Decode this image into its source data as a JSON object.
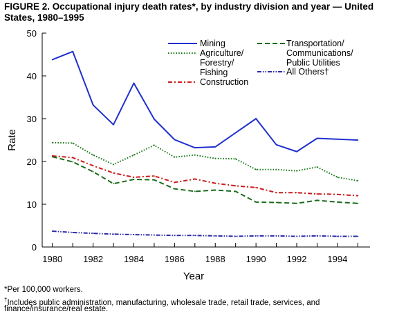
{
  "figure": {
    "title_line1": "FIGURE 2. Occupational injury death rates*, by industry division and year — United",
    "title_line2": "States, 1980–1995"
  },
  "chart_data": {
    "type": "line",
    "title": "FIGURE 2. Occupational injury death rates*, by industry division and year — United States, 1980–1995",
    "xlabel": "Year",
    "ylabel": "Rate",
    "x": [
      1980,
      1981,
      1982,
      1983,
      1984,
      1985,
      1986,
      1987,
      1988,
      1989,
      1990,
      1991,
      1992,
      1993,
      1994,
      1995
    ],
    "xlim": [
      1979.5,
      1995.6
    ],
    "ylim": [
      0,
      50
    ],
    "x_ticks": [
      1980,
      1981,
      1982,
      1983,
      1984,
      1985,
      1986,
      1987,
      1988,
      1989,
      1990,
      1991,
      1992,
      1993,
      1994,
      1995
    ],
    "x_tick_labels": [
      "1980",
      "1982",
      "1984",
      "1986",
      "1988",
      "1990",
      "1992",
      "1994"
    ],
    "x_tick_label_values": [
      1980,
      1982,
      1984,
      1986,
      1988,
      1990,
      1992,
      1994
    ],
    "y_ticks": [
      0,
      10,
      20,
      30,
      40,
      50
    ],
    "y_tick_labels": [
      "0",
      "10",
      "20",
      "30",
      "40",
      "50"
    ],
    "grid": false,
    "legend_position": "top-right",
    "series": [
      {
        "name": "Mining",
        "color": "#1f2fcf",
        "dash": "solid",
        "values": [
          43.8,
          45.7,
          33.2,
          28.6,
          38.3,
          29.9,
          25.1,
          23.2,
          23.4,
          26.7,
          30.0,
          23.9,
          22.3,
          25.4,
          25.2,
          25.0
        ]
      },
      {
        "name": "Agriculture/ Forestry/ Fishing",
        "color": "#1a7a1a",
        "dash": "dotted",
        "values": [
          24.4,
          24.3,
          21.5,
          19.3,
          21.5,
          23.8,
          21.0,
          21.5,
          20.7,
          20.6,
          18.1,
          18.1,
          17.8,
          18.7,
          16.3,
          15.5
        ]
      },
      {
        "name": "Construction",
        "color": "#cc1a1a",
        "dash": "dashdot",
        "values": [
          21.3,
          20.9,
          19.0,
          17.3,
          16.3,
          16.6,
          15.1,
          15.9,
          14.9,
          14.3,
          13.9,
          12.7,
          12.7,
          12.4,
          12.3,
          12.0
        ]
      },
      {
        "name": "Transportation/ Communications/ Public Utilities",
        "color": "#1a6a1a",
        "dash": "dashed",
        "values": [
          21.1,
          19.9,
          17.6,
          14.8,
          15.8,
          15.7,
          13.6,
          13.0,
          13.3,
          13.0,
          10.5,
          10.4,
          10.2,
          10.9,
          10.5,
          10.2
        ]
      },
      {
        "name": "All Others†",
        "color": "#2a2aa8",
        "dash": "dashdotdot",
        "values": [
          3.7,
          3.4,
          3.2,
          3.0,
          2.9,
          2.8,
          2.7,
          2.7,
          2.6,
          2.5,
          2.6,
          2.6,
          2.5,
          2.6,
          2.5,
          2.5
        ]
      }
    ],
    "legend": {
      "mining": "Mining",
      "agri_1": "Agriculture/",
      "agri_2": "Forestry/",
      "agri_3": "Fishing",
      "construction": "Construction",
      "trans_1": "Transportation/",
      "trans_2": "Communications/",
      "trans_3": "Public Utilities",
      "others": "All Others†"
    }
  },
  "footnotes": {
    "note1": "*Per 100,000 workers.",
    "note2_mark": "†",
    "note2_line1": "Includes public administration, manufacturing, wholesale trade, retail trade, services, and",
    "note2_line2": "finance/insurance/real estate."
  }
}
